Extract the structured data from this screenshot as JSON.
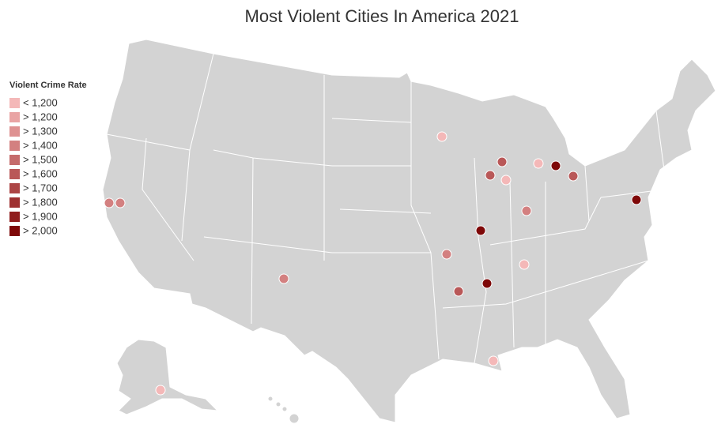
{
  "title": "Most Violent Cities In America 2021",
  "legend": {
    "title": "Violent Crime Rate",
    "items": [
      {
        "label": "< 1,200",
        "color": "#f4b8b8"
      },
      {
        "label": "> 1,200",
        "color": "#e9a4a4"
      },
      {
        "label": "> 1,300",
        "color": "#de9191"
      },
      {
        "label": "> 1,400",
        "color": "#d38080"
      },
      {
        "label": "> 1,500",
        "color": "#c56b6b"
      },
      {
        "label": "> 1,600",
        "color": "#b95858"
      },
      {
        "label": "> 1,700",
        "color": "#ac4545"
      },
      {
        "label": "> 1,800",
        "color": "#9e3030"
      },
      {
        "label": "> 1,900",
        "color": "#901e1e"
      },
      {
        "label": "> 2,000",
        "color": "#7e0808"
      }
    ]
  },
  "points": [
    {
      "color": "#f4b8b8"
    },
    {
      "color": "#b95858"
    },
    {
      "color": "#b95858"
    },
    {
      "color": "#f4b8b8"
    },
    {
      "color": "#f4b8b8"
    },
    {
      "color": "#7e0808"
    },
    {
      "color": "#b95858"
    },
    {
      "color": "#7e0808"
    },
    {
      "color": "#d38080"
    },
    {
      "color": "#7e0808"
    },
    {
      "color": "#d38080"
    },
    {
      "color": "#f4b8b8"
    },
    {
      "color": "#7e0808"
    },
    {
      "color": "#b95858"
    },
    {
      "color": "#d38080"
    },
    {
      "color": "#d38080"
    },
    {
      "color": "#d38080"
    },
    {
      "color": "#f4b8b8"
    },
    {
      "color": "#f4b8b8"
    }
  ]
}
